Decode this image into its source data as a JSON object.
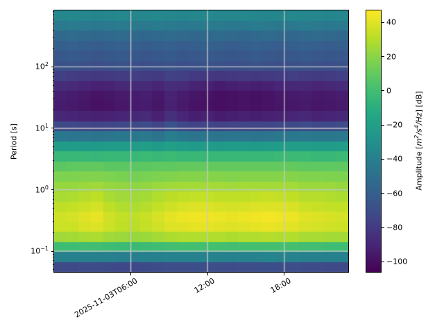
{
  "labels": {
    "ylabel": "Period [s]",
    "cb_prefix": "Amplitude [",
    "cb_m": "m",
    "cb_m_exp": "2",
    "cb_s": "/s",
    "cb_s_exp": "4",
    "cb_hz": "/Hz",
    "cb_suffix": "] [dB]"
  },
  "colors": {
    "background": "#ffffff",
    "spine": "#000000",
    "grid": "#c9c9c9",
    "text": "#000000",
    "viridis_stops": [
      {
        "t": 0.0,
        "color": "#440154"
      },
      {
        "t": 0.1,
        "color": "#482475"
      },
      {
        "t": 0.2,
        "color": "#414487"
      },
      {
        "t": 0.3,
        "color": "#355f8d"
      },
      {
        "t": 0.4,
        "color": "#2a788e"
      },
      {
        "t": 0.5,
        "color": "#21918c"
      },
      {
        "t": 0.6,
        "color": "#22a884"
      },
      {
        "t": 0.7,
        "color": "#44bf70"
      },
      {
        "t": 0.8,
        "color": "#7ad151"
      },
      {
        "t": 0.9,
        "color": "#bddf26"
      },
      {
        "t": 1.0,
        "color": "#fde725"
      }
    ]
  },
  "chart_data": {
    "type": "heatmap",
    "ylabel": "Period [s]",
    "colorbar_label": "Amplitude [m²/s⁴/Hz] [dB]",
    "colormap": "viridis",
    "y_scale": "log",
    "vmin": -106,
    "vmax": 47,
    "period_top": 830,
    "period_bottom": 0.046,
    "x_date": "2025-11-03",
    "x_start_hour": 0,
    "x_end_hour": 23,
    "x_ticks": [
      {
        "hour": 6,
        "label": "2025-11-03T06:00"
      },
      {
        "hour": 12,
        "label": "12:00"
      },
      {
        "hour": 18,
        "label": "18:00"
      }
    ],
    "y_ticks": [
      {
        "p": 100,
        "base": "10",
        "exp": "2"
      },
      {
        "p": 10,
        "base": "10",
        "exp": "1"
      },
      {
        "p": 1,
        "base": "10",
        "exp": "0"
      },
      {
        "p": 0.1,
        "base": "10",
        "exp": "−1"
      }
    ],
    "colorbar_ticks": [
      {
        "v": 40,
        "label": "40"
      },
      {
        "v": 20,
        "label": "20"
      },
      {
        "v": 0,
        "label": "0"
      },
      {
        "v": -20,
        "label": "−20"
      },
      {
        "v": -40,
        "label": "−40"
      },
      {
        "v": -60,
        "label": "−60"
      },
      {
        "v": -80,
        "label": "−80"
      },
      {
        "v": -100,
        "label": "−100"
      }
    ],
    "time_hours": [
      0,
      1,
      2,
      3,
      4,
      5,
      6,
      7,
      8,
      9,
      10,
      11,
      12,
      13,
      14,
      15,
      16,
      17,
      18,
      19,
      20,
      21,
      22,
      23
    ],
    "periods_s": [
      692,
      479,
      324,
      224,
      155,
      105,
      72,
      50,
      34,
      23,
      16,
      11,
      7.6,
      5.2,
      3.6,
      2.4,
      1.7,
      1.15,
      0.79,
      0.55,
      0.37,
      0.26,
      0.18,
      0.12,
      0.083,
      0.058
    ],
    "matrix_db": [
      [
        -36,
        -35,
        -36,
        -37,
        -36,
        -35,
        -36,
        -36,
        -35,
        -36,
        -37,
        -36,
        -35,
        -36,
        -36,
        -35,
        -36,
        -37,
        -36,
        -35,
        -36,
        -36,
        -37,
        -36
      ],
      [
        -44,
        -43,
        -44,
        -45,
        -44,
        -43,
        -44,
        -44,
        -43,
        -44,
        -45,
        -44,
        -43,
        -44,
        -45,
        -44,
        -43,
        -44,
        -45,
        -44,
        -43,
        -44,
        -45,
        -44
      ],
      [
        -54,
        -53,
        -54,
        -55,
        -54,
        -53,
        -54,
        -55,
        -54,
        -53,
        -54,
        -55,
        -54,
        -53,
        -54,
        -55,
        -54,
        -53,
        -54,
        -55,
        -54,
        -53,
        -54,
        -55
      ],
      [
        -60,
        -59,
        -60,
        -61,
        -60,
        -59,
        -60,
        -61,
        -60,
        -59,
        -61,
        -60,
        -59,
        -60,
        -61,
        -60,
        -59,
        -60,
        -61,
        -60,
        -59,
        -60,
        -61,
        -60
      ],
      [
        -64,
        -63,
        -64,
        -65,
        -64,
        -63,
        -64,
        -65,
        -64,
        -63,
        -65,
        -64,
        -63,
        -64,
        -65,
        -64,
        -63,
        -64,
        -65,
        -64,
        -63,
        -64,
        -65,
        -64
      ],
      [
        -68,
        -67,
        -68,
        -69,
        -68,
        -67,
        -68,
        -69,
        -68,
        -67,
        -69,
        -68,
        -67,
        -68,
        -69,
        -68,
        -67,
        -68,
        -69,
        -68,
        -67,
        -68,
        -69,
        -68
      ],
      [
        -78,
        -79,
        -80,
        -81,
        -80,
        -79,
        -78,
        -79,
        -80,
        -77,
        -78,
        -80,
        -81,
        -82,
        -81,
        -80,
        -81,
        -80,
        -79,
        -78,
        -79,
        -80,
        -79,
        -78
      ],
      [
        -87,
        -88,
        -90,
        -92,
        -91,
        -89,
        -88,
        -88,
        -90,
        -86,
        -88,
        -91,
        -92,
        -94,
        -93,
        -92,
        -93,
        -92,
        -90,
        -89,
        -89,
        -90,
        -89,
        -88
      ],
      [
        -93,
        -94,
        -96,
        -98,
        -97,
        -95,
        -94,
        -93,
        -96,
        -91,
        -94,
        -97,
        -98,
        -100,
        -99,
        -98,
        -99,
        -98,
        -96,
        -95,
        -94,
        -96,
        -95,
        -94
      ],
      [
        -94,
        -95,
        -97,
        -99,
        -98,
        -96,
        -95,
        -94,
        -97,
        -92,
        -95,
        -98,
        -99,
        -100,
        -99,
        -98,
        -99,
        -98,
        -97,
        -96,
        -95,
        -97,
        -96,
        -95
      ],
      [
        -89,
        -90,
        -91,
        -92,
        -91,
        -90,
        -89,
        -88,
        -92,
        -85,
        -90,
        -93,
        -91,
        -94,
        -93,
        -92,
        -93,
        -92,
        -91,
        -90,
        -89,
        -91,
        -90,
        -89
      ],
      [
        -72,
        -73,
        -74,
        -75,
        -74,
        -73,
        -72,
        -71,
        -75,
        -68,
        -73,
        -76,
        -74,
        -76,
        -75,
        -74,
        -75,
        -74,
        -73,
        -72,
        -71,
        -73,
        -72,
        -71
      ],
      [
        -45,
        -46,
        -46,
        -47,
        -46,
        -45,
        -45,
        -44,
        -47,
        -42,
        -45,
        -47,
        -46,
        -47,
        -46,
        -46,
        -47,
        -46,
        -45,
        -45,
        -44,
        -45,
        -45,
        -44
      ],
      [
        -22,
        -22,
        -23,
        -23,
        -22,
        -22,
        -22,
        -21,
        -23,
        -20,
        -22,
        -23,
        -22,
        -23,
        -22,
        -22,
        -23,
        -22,
        -22,
        -21,
        -21,
        -22,
        -22,
        -21
      ],
      [
        -4,
        -4,
        -4,
        -5,
        -4,
        -4,
        -4,
        -3,
        -4,
        -3,
        -4,
        -4,
        -4,
        -4,
        -4,
        -4,
        -4,
        -4,
        -3,
        -3,
        -3,
        -4,
        -4,
        -3
      ],
      [
        8,
        9,
        9,
        10,
        8,
        8,
        8,
        8,
        9,
        9,
        10,
        10,
        10,
        10,
        10,
        10,
        10,
        10,
        10,
        10,
        9,
        9,
        9,
        9
      ],
      [
        17,
        17,
        18,
        18,
        17,
        16,
        15,
        16,
        17,
        18,
        19,
        19,
        19,
        19,
        18,
        19,
        19,
        19,
        19,
        19,
        18,
        18,
        17,
        17
      ],
      [
        23,
        23,
        24,
        25,
        23,
        22,
        21,
        22,
        24,
        25,
        26,
        26,
        26,
        26,
        25,
        26,
        26,
        26,
        26,
        26,
        24,
        24,
        24,
        23
      ],
      [
        27,
        28,
        30,
        32,
        27,
        25,
        25,
        26,
        29,
        31,
        32,
        33,
        33,
        32,
        32,
        32,
        33,
        34,
        33,
        32,
        30,
        30,
        29,
        28
      ],
      [
        32,
        33,
        35,
        37,
        32,
        29,
        28,
        30,
        33,
        36,
        38,
        39,
        39,
        38,
        37,
        38,
        39,
        39,
        39,
        38,
        35,
        34,
        33,
        33
      ],
      [
        36,
        37,
        40,
        42,
        36,
        33,
        32,
        34,
        38,
        41,
        43,
        44,
        44,
        43,
        42,
        43,
        44,
        45,
        44,
        43,
        40,
        39,
        38,
        37
      ],
      [
        35,
        35,
        38,
        39,
        35,
        32,
        31,
        33,
        36,
        39,
        40,
        41,
        41,
        40,
        39,
        40,
        41,
        42,
        41,
        40,
        38,
        37,
        36,
        35
      ],
      [
        25,
        26,
        27,
        28,
        25,
        24,
        23,
        24,
        26,
        28,
        29,
        29,
        29,
        29,
        28,
        29,
        29,
        30,
        29,
        29,
        27,
        27,
        26,
        26
      ],
      [
        -1,
        -1,
        0,
        0,
        -1,
        -2,
        -3,
        -2,
        -1,
        0,
        1,
        1,
        1,
        1,
        0,
        1,
        1,
        1,
        1,
        1,
        0,
        0,
        -1,
        -1
      ],
      [
        -40,
        -40,
        -39,
        -39,
        -40,
        -41,
        -41,
        -40,
        -39,
        -38,
        -38,
        -38,
        -38,
        -38,
        -39,
        -38,
        -38,
        -37,
        -38,
        -38,
        -39,
        -39,
        -40,
        -40
      ],
      [
        -72,
        -72,
        -71,
        -71,
        -72,
        -73,
        -73,
        -72,
        -71,
        -70,
        -70,
        -70,
        -70,
        -70,
        -71,
        -70,
        -70,
        -69,
        -70,
        -70,
        -71,
        -71,
        -72,
        -72
      ]
    ]
  }
}
